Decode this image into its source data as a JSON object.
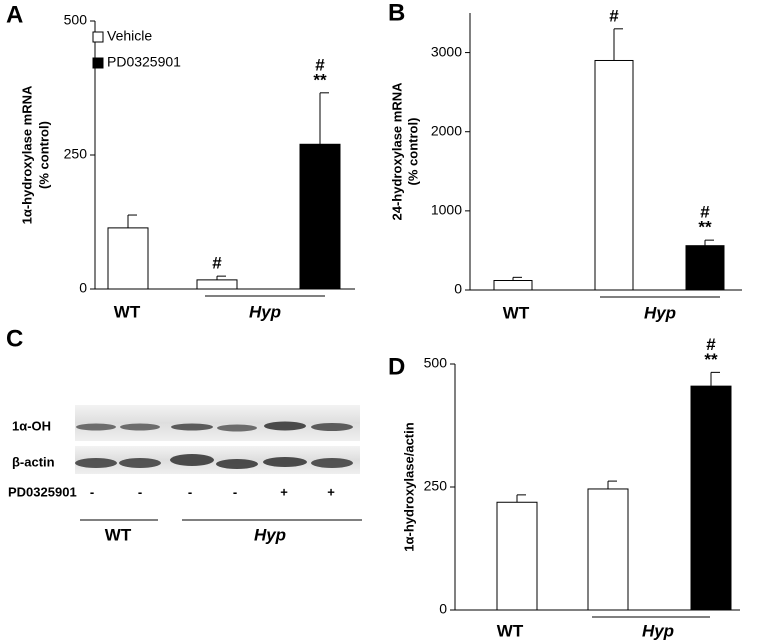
{
  "chart_data": [
    {
      "type": "bar",
      "panel": "A",
      "ylabel": [
        "1α-hydroxylase mRNA",
        "(% control)"
      ],
      "categories": [
        "WT",
        "Hyp"
      ],
      "series": [
        {
          "name": "Vehicle",
          "color": "#ffffff",
          "values": [
            114,
            17
          ],
          "errors": [
            24,
            7
          ],
          "markers": [
            null,
            [
              "#"
            ]
          ]
        },
        {
          "name": "PD0325901",
          "color": "#000000",
          "values": [
            null,
            270
          ],
          "errors": [
            null,
            96
          ],
          "markers": [
            null,
            [
              "#",
              "**"
            ]
          ]
        }
      ],
      "ylim": [
        0,
        500
      ],
      "yticks": [
        0,
        250,
        500
      ],
      "legend": "upper left"
    },
    {
      "type": "bar",
      "panel": "B",
      "ylabel": [
        "24-hydroxylase mRNA",
        "(% control)"
      ],
      "categories": [
        "WT",
        "Hyp"
      ],
      "series": [
        {
          "color": "#ffffff",
          "values": [
            120,
            2900
          ],
          "errors": [
            40,
            400
          ],
          "markers": [
            null,
            [
              "#"
            ]
          ]
        },
        {
          "color": "#000000",
          "values": [
            null,
            560
          ],
          "errors": [
            null,
            70
          ],
          "markers": [
            null,
            [
              "#",
              "**"
            ]
          ]
        }
      ],
      "ylim": [
        0,
        3500
      ],
      "yticks": [
        0,
        1000,
        2000,
        3000
      ]
    },
    {
      "type": "bar",
      "panel": "D",
      "ylabel": [
        "1α-hydroxylase/actin"
      ],
      "categories": [
        "WT",
        "Hyp"
      ],
      "series": [
        {
          "color": "#ffffff",
          "values": [
            219,
            246
          ],
          "errors": [
            15,
            16
          ],
          "markers": [
            null,
            null
          ]
        },
        {
          "color": "#000000",
          "values": [
            null,
            455
          ],
          "errors": [
            null,
            28
          ],
          "markers": [
            null,
            [
              "#",
              "**"
            ]
          ]
        }
      ],
      "ylim": [
        0,
        500
      ],
      "yticks": [
        0,
        250,
        500
      ]
    }
  ],
  "blot": {
    "panel": "C",
    "rows": [
      "1α-OH",
      "β-actin"
    ],
    "treatment_label": "PD0325901",
    "lanes": [
      "-",
      "-",
      "-",
      "-",
      "+",
      "+"
    ],
    "groups": [
      "WT",
      "Hyp"
    ]
  }
}
